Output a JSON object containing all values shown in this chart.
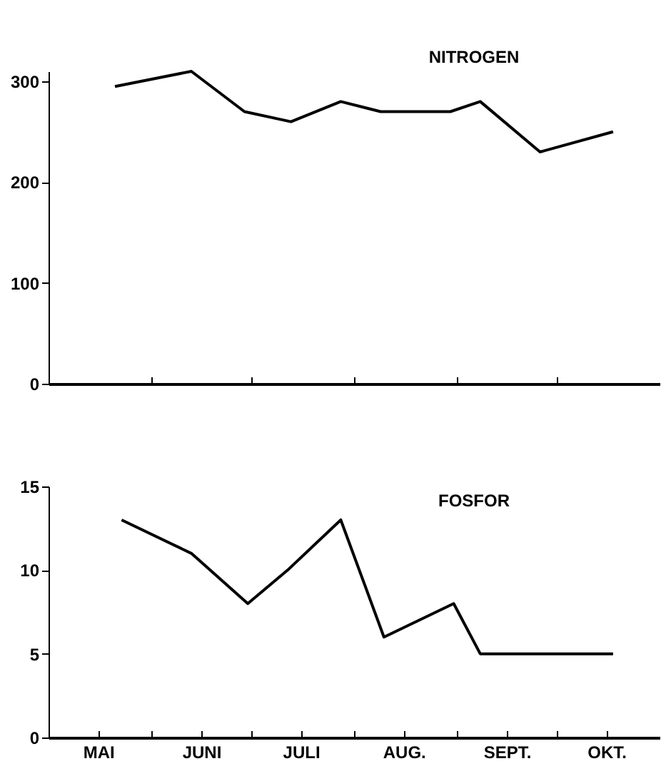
{
  "chart_data": [
    {
      "type": "line",
      "xlim": [
        "--05-01",
        "--11-01"
      ],
      "ylim": [
        0,
        310
      ],
      "yticks": [
        0,
        100,
        200,
        300
      ],
      "tick_labels": "y",
      "xticks": [
        {
          "value": "--06-01",
          "label": null
        },
        {
          "value": "--07-01",
          "label": null
        },
        {
          "value": "--08-01",
          "label": null
        },
        {
          "value": "--09-01",
          "label": null
        },
        {
          "value": "--10-01",
          "label": null
        }
      ],
      "series": [
        {
          "name": "NITROGEN",
          "color": "#000000",
          "x": [
            "--05-21",
            "--06-13",
            "--06-29",
            "--07-13",
            "--07-28",
            "--08-09",
            "--08-30",
            "--09-08",
            "--09-26",
            "--10-18"
          ],
          "values": [
            295,
            310,
            270,
            260,
            280,
            270,
            270,
            280,
            230,
            250
          ]
        }
      ]
    },
    {
      "type": "line",
      "xlim": [
        "--05-01",
        "--11-01"
      ],
      "ylim": [
        0,
        15
      ],
      "yticks": [
        0,
        5,
        10,
        15
      ],
      "xticks": [
        {
          "value": "--05-16",
          "label": "MAI"
        },
        {
          "value": "--06-01",
          "label": null
        },
        {
          "value": "--06-16",
          "label": "JUNI"
        },
        {
          "value": "--07-01",
          "label": null
        },
        {
          "value": "--07-16",
          "label": "JULI"
        },
        {
          "value": "--08-01",
          "label": null
        },
        {
          "value": "--08-16",
          "label": "AUG."
        },
        {
          "value": "--09-01",
          "label": null
        },
        {
          "value": "--09-16",
          "label": "SEPT."
        },
        {
          "value": "--10-01",
          "label": null
        },
        {
          "value": "--10-16",
          "label": "OKT."
        }
      ],
      "series": [
        {
          "name": "FOSFOR",
          "color": "#000000",
          "x": [
            "--05-23",
            "--06-13",
            "--06-30",
            "--07-12",
            "--07-28",
            "--08-10",
            "--08-31",
            "--09-08",
            "--10-18"
          ],
          "values": [
            13,
            11,
            8,
            10,
            13,
            6,
            8,
            5,
            5
          ]
        }
      ]
    }
  ]
}
